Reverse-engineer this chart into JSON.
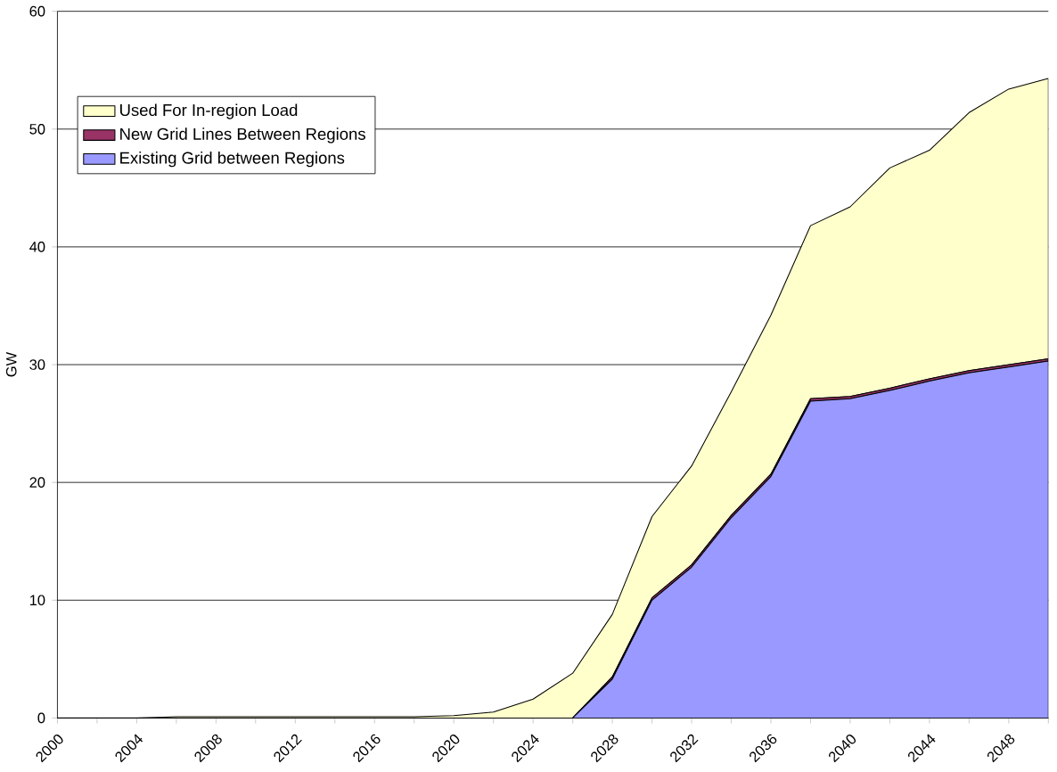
{
  "chart_data": {
    "type": "area",
    "ylabel": "GW",
    "stacked": true,
    "categories": [
      "2000",
      null,
      "2004",
      null,
      "2008",
      null,
      "2012",
      null,
      "2016",
      null,
      "2020",
      null,
      "2024",
      null,
      "2028",
      null,
      "2032",
      null,
      "2036",
      null,
      "2040",
      null,
      "2044",
      null,
      "2048",
      null
    ],
    "series": [
      {
        "name": "Existing Grid between Regions",
        "color": "#9999ff",
        "values": [
          0,
          0,
          0,
          0,
          0,
          0,
          0,
          0,
          0,
          0,
          0,
          0,
          0,
          0,
          3.3,
          10.0,
          12.8,
          17.0,
          20.5,
          26.9,
          27.1,
          27.8,
          28.6,
          29.3,
          29.8,
          30.3
        ]
      },
      {
        "name": "New Grid Lines Between Regions",
        "color": "#993366",
        "values": [
          0,
          0,
          0,
          0,
          0,
          0,
          0,
          0,
          0,
          0,
          0,
          0,
          0,
          0,
          0.2,
          0.2,
          0.2,
          0.2,
          0.2,
          0.2,
          0.2,
          0.2,
          0.2,
          0.2,
          0.2,
          0.2
        ]
      },
      {
        "name": "Used For In-region Load",
        "color": "#ffffcc",
        "values": [
          0,
          0,
          0,
          0.1,
          0.1,
          0.1,
          0.1,
          0.1,
          0.1,
          0.1,
          0.2,
          0.5,
          1.6,
          3.8,
          5.3,
          6.9,
          8.4,
          10.5,
          13.5,
          14.7,
          16.1,
          18.7,
          19.4,
          21.9,
          23.4,
          23.8
        ]
      }
    ],
    "ylim": [
      0,
      60
    ],
    "yticks": [
      0,
      10,
      20,
      30,
      40,
      50,
      60
    ],
    "grid": "y",
    "legend": "top left"
  }
}
